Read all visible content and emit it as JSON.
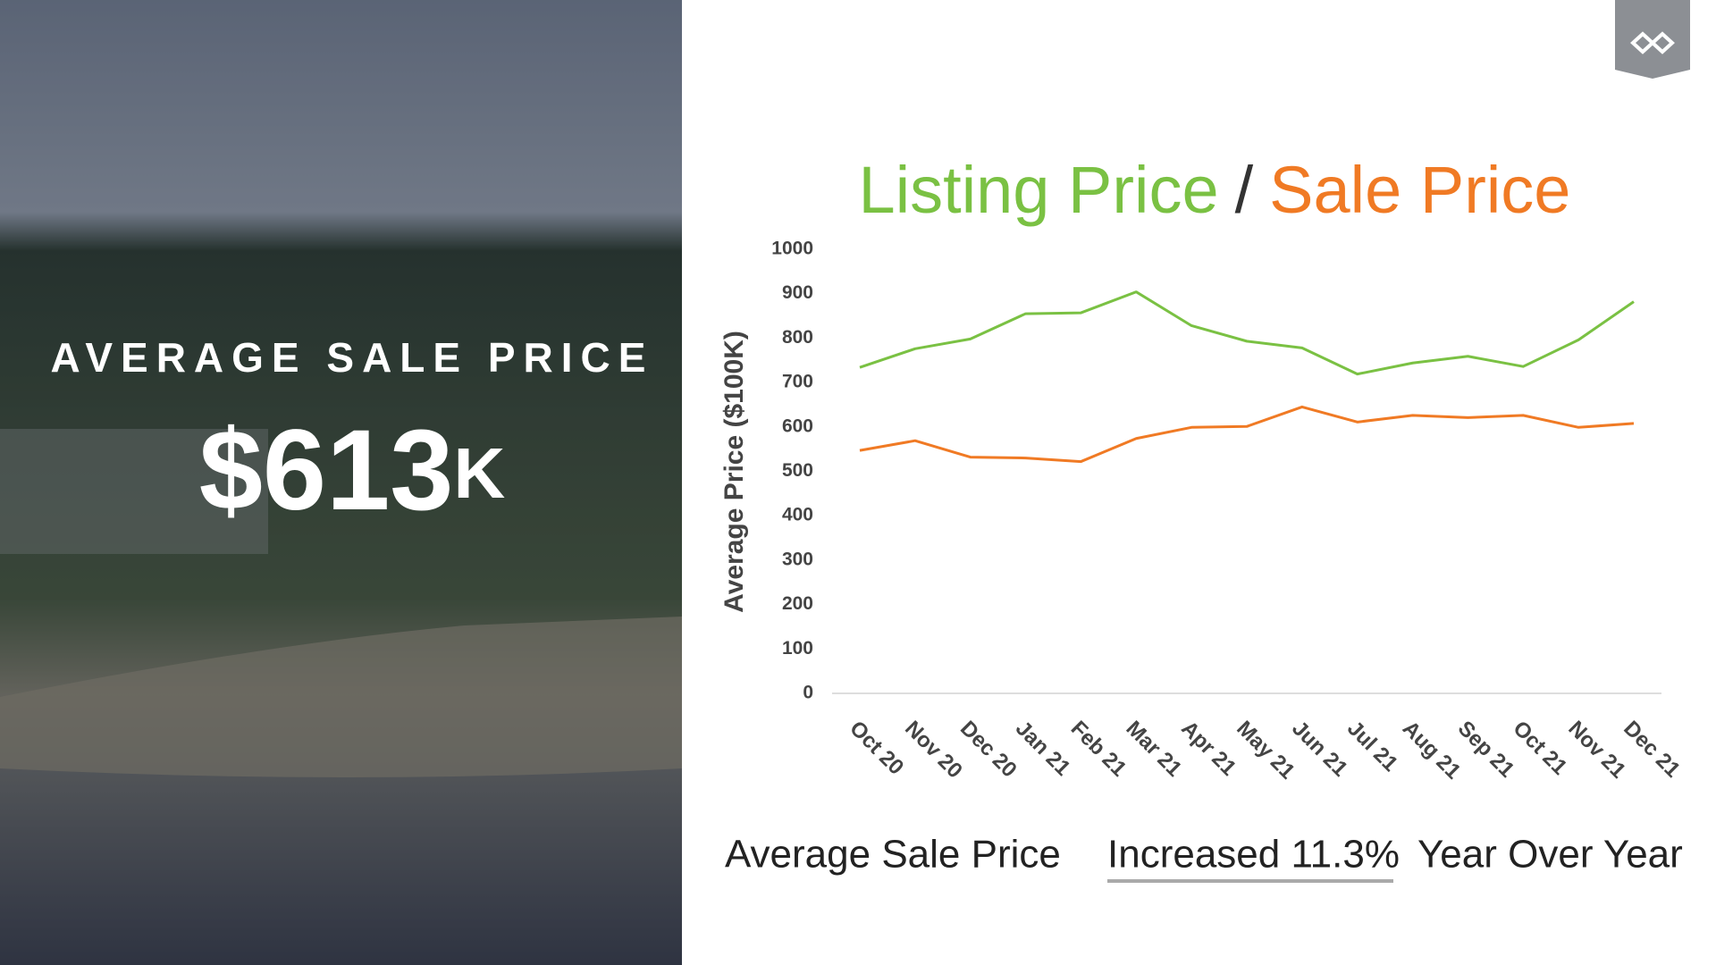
{
  "hero": {
    "label": "AVERAGE SALE PRICE",
    "value": "$613",
    "unit": "K"
  },
  "chart_data": {
    "type": "line",
    "title_separator": "/",
    "y_label": "Average Price ($100K)",
    "categories": [
      "Oct 20",
      "Nov 20",
      "Dec 20",
      "Jan 21",
      "Feb 21",
      "Mar 21",
      "Apr 21",
      "May 21",
      "Jun 21",
      "Jul 21",
      "Aug 21",
      "Sep 21",
      "Oct 21",
      "Nov 21",
      "Dec 21"
    ],
    "series": [
      {
        "name": "Listing Price",
        "color": "#7ac143",
        "values": [
          734,
          776,
          798,
          855,
          857,
          904,
          828,
          793,
          778,
          719,
          744,
          759,
          736,
          796,
          882
        ]
      },
      {
        "name": "Sale Price",
        "color": "#f07a24",
        "values": [
          547,
          569,
          532,
          530,
          522,
          574,
          599,
          601,
          645,
          611,
          626,
          621,
          626,
          599,
          608
        ]
      }
    ],
    "ylim": [
      0,
      1000
    ],
    "yticks": [
      0,
      100,
      200,
      300,
      400,
      500,
      600,
      700,
      800,
      900,
      1000
    ],
    "grid": false
  },
  "footer": {
    "lead": "Average Sale Price",
    "highlight": "Increased 11.3%",
    "tail": "Year Over Year"
  }
}
